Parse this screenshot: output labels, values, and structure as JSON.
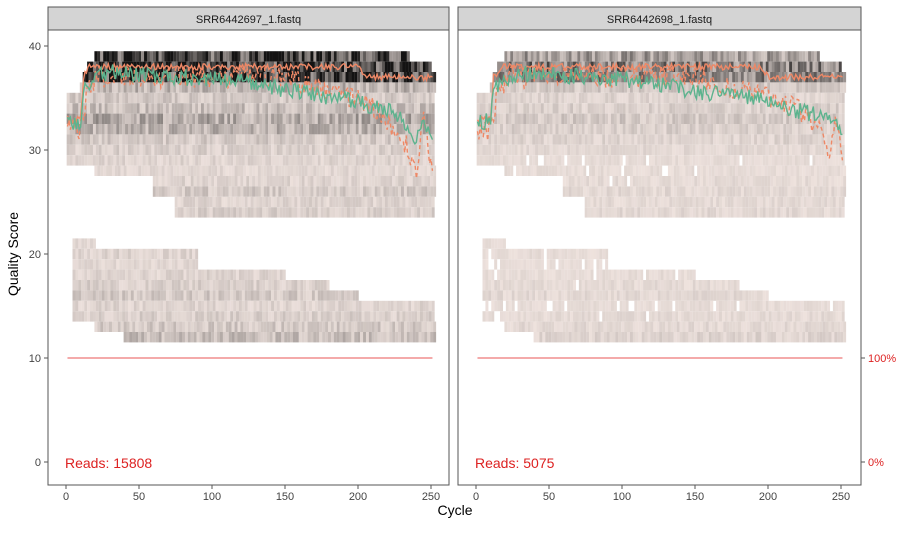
{
  "chart_data": {
    "type": "heatmap",
    "xlabel": "Cycle",
    "ylabel": "Quality Score",
    "xlim": [
      0,
      255
    ],
    "ylim": [
      0,
      41
    ],
    "x_ticks": [
      "0",
      "50",
      "100",
      "150",
      "200",
      "250"
    ],
    "y_ticks": [
      "0",
      "10",
      "20",
      "30",
      "40"
    ],
    "right_axis_ticks": [
      "0%",
      "100%"
    ],
    "colors": {
      "mean": "#5db38e",
      "median": "#ee8866",
      "quartile": "#ee8866",
      "coverage": "#ee7777",
      "reads": "#dd2222",
      "strip": "#d4d4d4"
    },
    "panels": [
      {
        "title": "SRR6442697_1.fastq",
        "reads_label": "Reads:",
        "reads": "15808",
        "mean": [
          [
            1,
            32.5
          ],
          [
            10,
            32.8
          ],
          [
            12,
            36
          ],
          [
            20,
            37
          ],
          [
            30,
            37.5
          ],
          [
            50,
            37.2
          ],
          [
            80,
            37
          ],
          [
            100,
            36.8
          ],
          [
            130,
            36.4
          ],
          [
            150,
            35.8
          ],
          [
            170,
            35.3
          ],
          [
            190,
            35
          ],
          [
            200,
            34.6
          ],
          [
            215,
            34
          ],
          [
            225,
            33.5
          ],
          [
            235,
            32
          ],
          [
            240,
            31
          ],
          [
            245,
            33
          ],
          [
            251,
            31
          ]
        ],
        "median": [
          [
            1,
            33
          ],
          [
            10,
            33
          ],
          [
            12,
            37
          ],
          [
            15,
            38
          ],
          [
            200,
            38
          ],
          [
            205,
            37
          ],
          [
            251,
            37
          ]
        ],
        "q1": [
          [
            1,
            32
          ],
          [
            10,
            32
          ],
          [
            14,
            35
          ],
          [
            20,
            37
          ],
          [
            150,
            37
          ],
          [
            170,
            36
          ],
          [
            200,
            35
          ],
          [
            220,
            33
          ],
          [
            235,
            30
          ],
          [
            240,
            28
          ],
          [
            245,
            33
          ],
          [
            251,
            28
          ]
        ],
        "coverage": [
          [
            1,
            100
          ],
          [
            251,
            100
          ]
        ],
        "heat": [
          [
            39,
            20,
            235,
            0.8
          ],
          [
            38,
            15,
            250,
            0.9
          ],
          [
            37,
            12,
            252,
            0.85
          ],
          [
            36,
            10,
            252,
            0.25
          ],
          [
            35,
            1,
            252,
            0.15
          ],
          [
            34,
            1,
            252,
            0.2
          ],
          [
            33,
            1,
            252,
            0.3
          ],
          [
            32,
            1,
            252,
            0.25
          ],
          [
            31,
            1,
            252,
            0.15
          ],
          [
            30,
            1,
            252,
            0.12
          ],
          [
            29,
            1,
            252,
            0.1
          ],
          [
            28,
            20,
            252,
            0.08
          ],
          [
            27,
            60,
            252,
            0.1
          ],
          [
            26,
            60,
            252,
            0.15
          ],
          [
            25,
            75,
            252,
            0.1
          ],
          [
            24,
            75,
            252,
            0.12
          ],
          [
            21,
            5,
            20,
            0.08
          ],
          [
            20,
            5,
            90,
            0.1
          ],
          [
            19,
            5,
            90,
            0.08
          ],
          [
            18,
            5,
            150,
            0.1
          ],
          [
            17,
            5,
            180,
            0.12
          ],
          [
            16,
            5,
            200,
            0.15
          ],
          [
            15,
            5,
            252,
            0.1
          ],
          [
            14,
            5,
            252,
            0.12
          ],
          [
            13,
            20,
            252,
            0.15
          ],
          [
            12,
            40,
            252,
            0.2
          ]
        ]
      },
      {
        "title": "SRR6442698_1.fastq",
        "reads_label": "Reads:",
        "reads": "5075",
        "mean": [
          [
            1,
            32.5
          ],
          [
            10,
            33
          ],
          [
            12,
            36
          ],
          [
            20,
            36.5
          ],
          [
            30,
            37.3
          ],
          [
            50,
            37.3
          ],
          [
            80,
            37
          ],
          [
            100,
            36.8
          ],
          [
            130,
            36.3
          ],
          [
            150,
            35.6
          ],
          [
            170,
            35.3
          ],
          [
            190,
            35
          ],
          [
            200,
            34.6
          ],
          [
            215,
            34
          ],
          [
            230,
            33.5
          ],
          [
            240,
            33
          ],
          [
            245,
            32.5
          ],
          [
            251,
            31.5
          ]
        ],
        "median": [
          [
            1,
            33
          ],
          [
            10,
            33
          ],
          [
            12,
            37
          ],
          [
            18,
            38
          ],
          [
            195,
            38
          ],
          [
            200,
            37
          ],
          [
            251,
            37
          ]
        ],
        "q1": [
          [
            1,
            32
          ],
          [
            10,
            32
          ],
          [
            14,
            35
          ],
          [
            22,
            37
          ],
          [
            150,
            37
          ],
          [
            175,
            36
          ],
          [
            200,
            35
          ],
          [
            220,
            34
          ],
          [
            235,
            32
          ],
          [
            242,
            29
          ],
          [
            246,
            33
          ],
          [
            251,
            29
          ]
        ],
        "coverage": [
          [
            1,
            100
          ],
          [
            251,
            100
          ]
        ],
        "heat": [
          [
            39,
            20,
            235,
            0.35
          ],
          [
            38,
            15,
            250,
            0.5
          ],
          [
            37,
            12,
            252,
            0.45
          ],
          [
            36,
            10,
            252,
            0.15
          ],
          [
            35,
            1,
            252,
            0.1
          ],
          [
            34,
            1,
            252,
            0.12
          ],
          [
            33,
            1,
            252,
            0.15
          ],
          [
            32,
            1,
            252,
            0.12
          ],
          [
            31,
            1,
            252,
            0.1
          ],
          [
            30,
            1,
            252,
            0.08
          ],
          [
            29,
            1,
            252,
            0.06
          ],
          [
            28,
            20,
            252,
            0.06
          ],
          [
            27,
            60,
            252,
            0.07
          ],
          [
            26,
            60,
            252,
            0.08
          ],
          [
            25,
            75,
            252,
            0.07
          ],
          [
            24,
            75,
            252,
            0.08
          ],
          [
            21,
            5,
            20,
            0.05
          ],
          [
            20,
            5,
            90,
            0.06
          ],
          [
            19,
            5,
            90,
            0.05
          ],
          [
            18,
            5,
            150,
            0.06
          ],
          [
            17,
            5,
            180,
            0.07
          ],
          [
            16,
            5,
            200,
            0.08
          ],
          [
            15,
            5,
            252,
            0.06
          ],
          [
            14,
            5,
            252,
            0.07
          ],
          [
            13,
            20,
            252,
            0.08
          ],
          [
            12,
            40,
            252,
            0.1
          ]
        ]
      }
    ]
  }
}
